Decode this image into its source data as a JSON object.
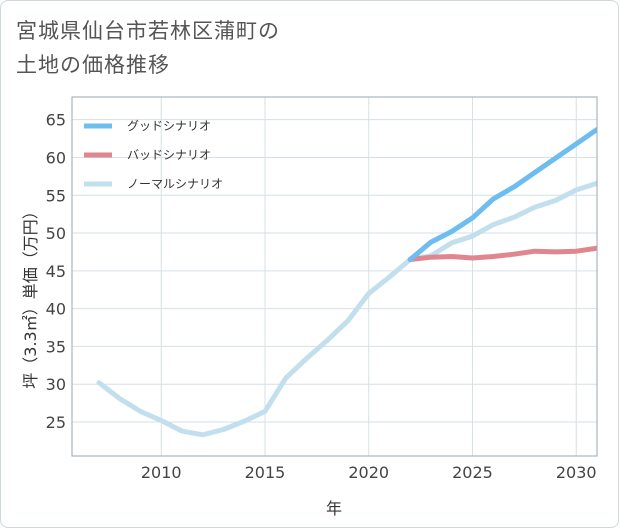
{
  "header": {
    "title_line1": "宮城県仙台市若林区蒲町の",
    "title_line2": "土地の価格推移"
  },
  "colors": {
    "good": "#6dbdf0",
    "bad": "#e0868e",
    "normal": "#c2dfee",
    "grid": "#d6e0e6",
    "plot_border": "#9aa7b0"
  },
  "chart_data": {
    "type": "line",
    "title": "宮城県仙台市若林区蒲町の土地の価格推移",
    "xlabel": "年",
    "ylabel": "坪（3.3㎡）単価（万円）",
    "xlim": [
      2005.7,
      2031
    ],
    "ylim": [
      20.5,
      68
    ],
    "x_ticks": [
      2010,
      2015,
      2020,
      2025,
      2030
    ],
    "y_ticks": [
      25,
      30,
      35,
      40,
      45,
      50,
      55,
      60,
      65
    ],
    "grid": true,
    "legend_position": "top-left",
    "series": [
      {
        "name": "グッドシナリオ",
        "color": "#6dbdf0",
        "x": [
          2022,
          2023,
          2024,
          2025,
          2026,
          2027,
          2028,
          2029,
          2030,
          2031
        ],
        "values": [
          46.5,
          48.8,
          50.2,
          52.0,
          54.5,
          56.1,
          58.0,
          59.9,
          61.8,
          63.7
        ]
      },
      {
        "name": "バッドシナリオ",
        "color": "#e0868e",
        "x": [
          2022,
          2023,
          2024,
          2025,
          2026,
          2027,
          2028,
          2029,
          2030,
          2031
        ],
        "values": [
          46.5,
          46.8,
          46.9,
          46.7,
          46.9,
          47.2,
          47.6,
          47.5,
          47.6,
          48.0
        ]
      },
      {
        "name": "ノーマルシナリオ",
        "color": "#c2dfee",
        "x": [
          2007,
          2008,
          2009,
          2010,
          2011,
          2012,
          2013,
          2014,
          2015,
          2016,
          2017,
          2018,
          2019,
          2020,
          2021,
          2022,
          2023,
          2024,
          2025,
          2026,
          2027,
          2028,
          2029,
          2030,
          2031
        ],
        "values": [
          30.2,
          28.1,
          26.4,
          25.2,
          23.8,
          23.3,
          24.0,
          25.1,
          26.4,
          30.8,
          33.4,
          35.8,
          38.4,
          42.0,
          44.2,
          46.5,
          47.0,
          48.7,
          49.6,
          51.1,
          52.1,
          53.4,
          54.3,
          55.7,
          56.6
        ]
      }
    ]
  }
}
